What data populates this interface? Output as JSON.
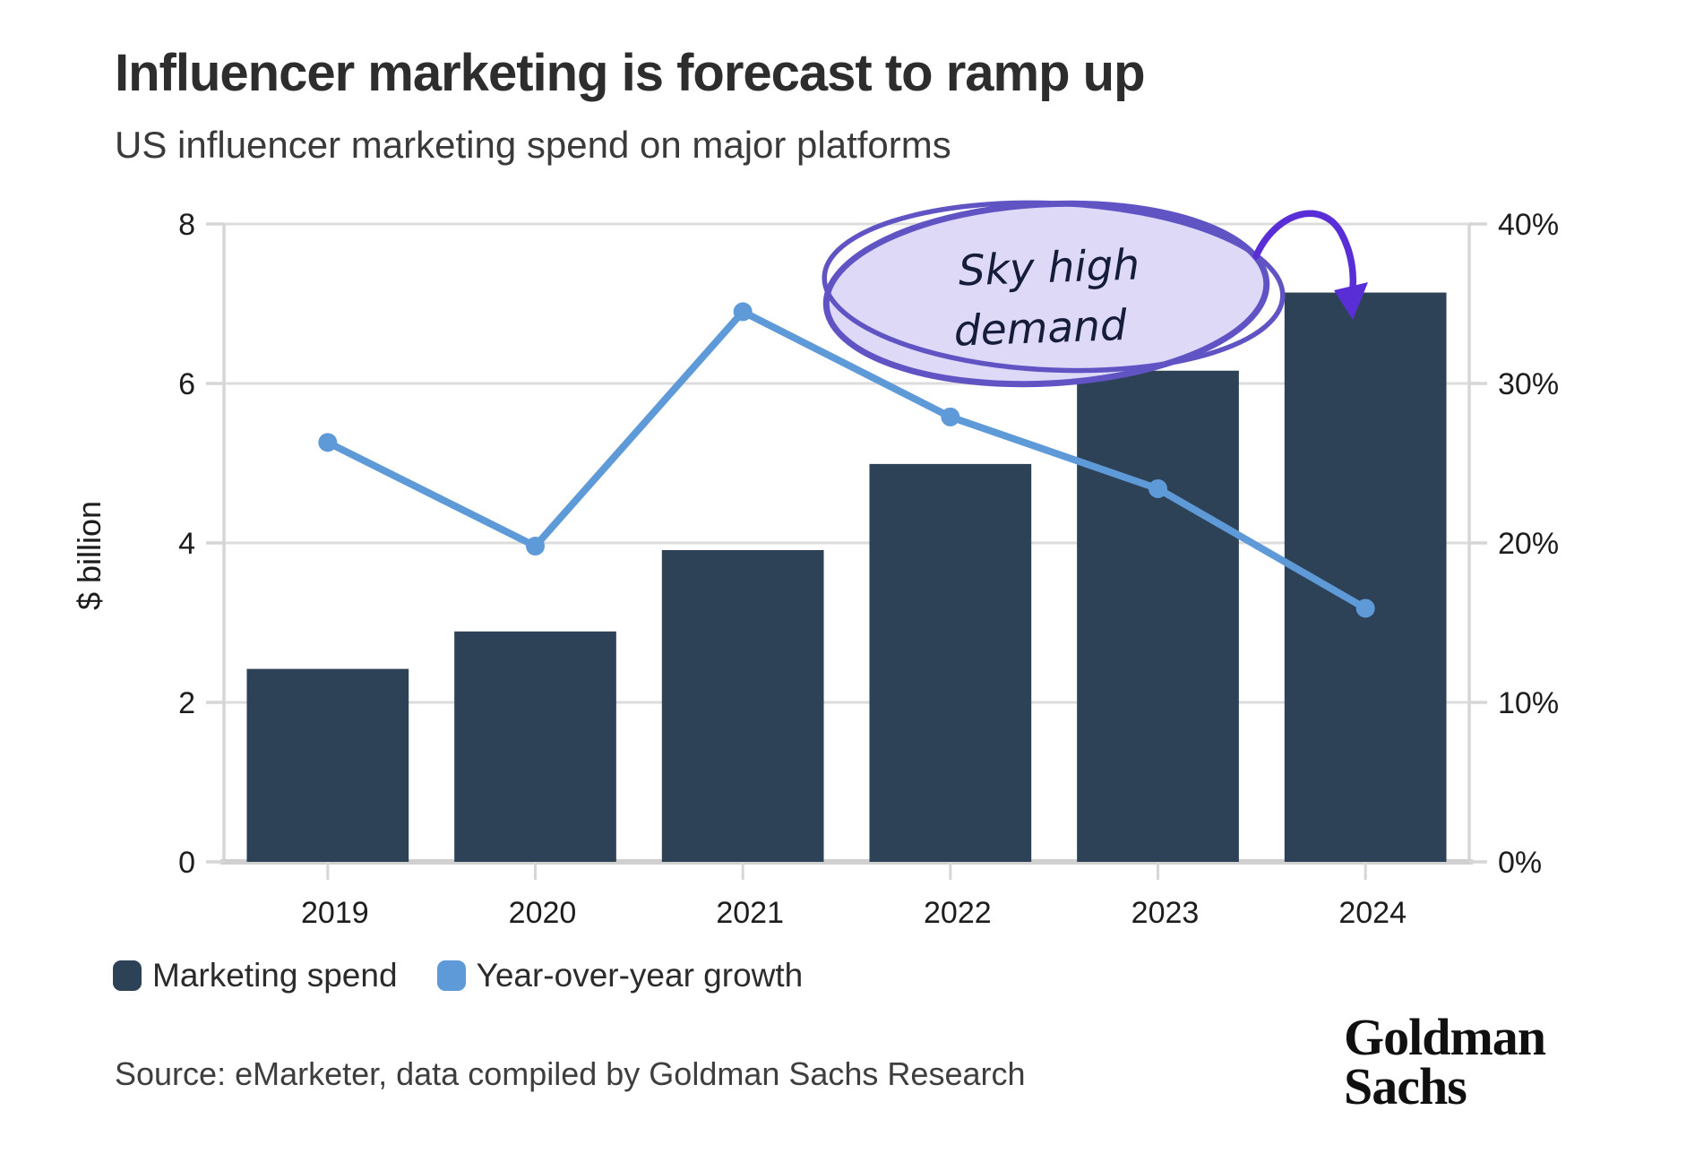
{
  "header": {
    "title": "Influencer marketing is forecast to ramp up",
    "subtitle": "US influencer marketing spend on major platforms"
  },
  "chart_data": {
    "type": "bar",
    "note": "combo bar+line, dual axis",
    "categories": [
      "2019",
      "2020",
      "2021",
      "2022",
      "2023",
      "2024"
    ],
    "series": [
      {
        "name": "Marketing spend",
        "type": "bar",
        "axis": "left",
        "unit": "$ billion",
        "values": [
          2.42,
          2.89,
          3.91,
          4.99,
          6.16,
          7.14
        ],
        "color": "#2e4257"
      },
      {
        "name": "Year-over-year growth",
        "type": "line",
        "axis": "right",
        "unit": "%",
        "values": [
          26.3,
          19.8,
          34.5,
          27.9,
          23.4,
          15.9
        ],
        "color": "#5f9ad8"
      }
    ],
    "left_axis": {
      "label": "$ billion",
      "tick_labels": [
        "0",
        "2",
        "4",
        "6",
        "8"
      ],
      "tick_values": [
        0,
        2,
        4,
        6,
        8
      ],
      "range": [
        0,
        8
      ]
    },
    "right_axis": {
      "tick_labels": [
        "0%",
        "10%",
        "20%",
        "30%",
        "40%"
      ],
      "tick_values": [
        0,
        10,
        20,
        30,
        40
      ],
      "range": [
        0,
        40
      ]
    },
    "grid": true,
    "grid_color": "#dcdcdc",
    "axis_line_color": "#d6d6d6",
    "legend_position": "bottom-left",
    "title": "Influencer marketing is forecast to ramp up",
    "subtitle": "US influencer marketing spend on major platforms"
  },
  "annotation": {
    "line1": "Sky high",
    "line2": "demand",
    "fill": "#ded9f6",
    "stroke": "#6054c4",
    "arrow_color": "#5a2ed6",
    "ink": "#151d3b"
  },
  "legend": {
    "items": [
      {
        "label": "Marketing spend",
        "color": "#2e4257"
      },
      {
        "label": "Year-over-year growth",
        "color": "#5f9ad8"
      }
    ]
  },
  "footer": {
    "source": "Source: eMarketer, data compiled by Goldman Sachs Research",
    "logo_line1": "Goldman",
    "logo_line2": "Sachs"
  }
}
